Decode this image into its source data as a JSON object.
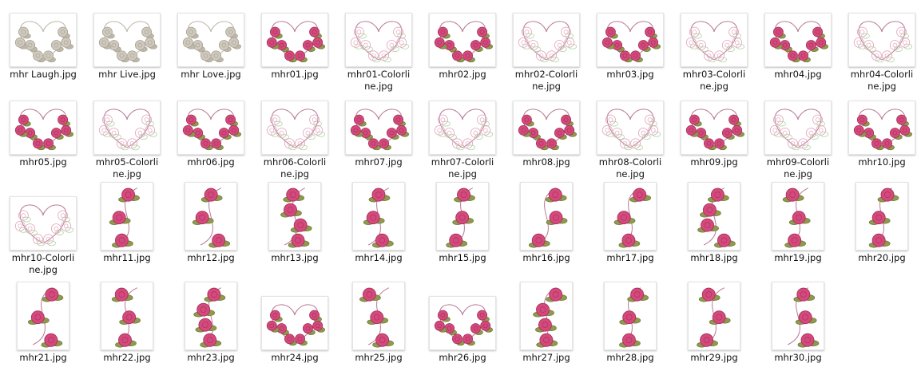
{
  "files": [
    "mhr Laugh.jpg",
    "mhr Live.jpg",
    "mhr Love.jpg",
    "mhr01.jpg",
    "mhr01-Colorline.jpg",
    "mhr02.jpg",
    "mhr02-Colorline.jpg",
    "mhr03.jpg",
    "mhr03-Colorline.jpg",
    "mhr04.jpg",
    "mhr04-Colorline.jpg",
    "mhr05.jpg",
    "mhr05-Colorline.jpg",
    "mhr06.jpg",
    "mhr06-Colorline.jpg",
    "mhr07.jpg",
    "mhr07-Colorline.jpg",
    "mhr08.jpg",
    "mhr08-Colorline.jpg",
    "mhr09.jpg",
    "mhr09-Colorline.jpg",
    "mhr10.jpg",
    "mhr10-Colorline.jpg",
    "mhr11.jpg",
    "mhr12.jpg",
    "mhr13.jpg",
    "mhr14.jpg",
    "mhr15.jpg",
    "mhr16.jpg",
    "mhr17.jpg",
    "mhr18.jpg",
    "mhr19.jpg",
    "mhr20.jpg",
    "mhr21.jpg",
    "mhr22.jpg",
    "mhr23.jpg",
    "mhr24.jpg",
    "mhr25.jpg",
    "mhr26.jpg",
    "mhr27.jpg",
    "mhr28.jpg",
    "mhr29.jpg",
    "mhr30.jpg"
  ]
}
